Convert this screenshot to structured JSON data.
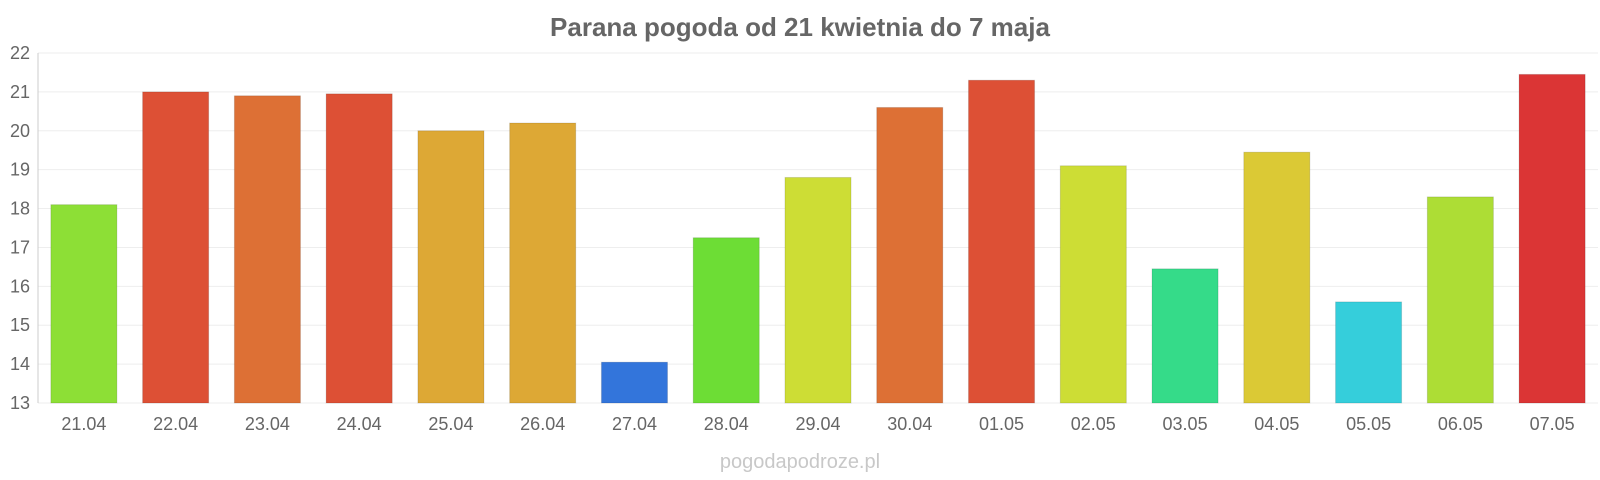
{
  "watermark": "pogodapodroze.pl",
  "chart_data": {
    "type": "bar",
    "title": "Parana pogoda od 21 kwietnia do 7 maja",
    "xlabel": "",
    "ylabel": "",
    "categories": [
      "21.04",
      "22.04",
      "23.04",
      "24.04",
      "25.04",
      "26.04",
      "27.04",
      "28.04",
      "29.04",
      "30.04",
      "01.05",
      "02.05",
      "03.05",
      "04.05",
      "05.05",
      "06.05",
      "07.05"
    ],
    "values": [
      18.1,
      21.0,
      20.9,
      20.95,
      20.0,
      20.2,
      14.05,
      17.25,
      18.8,
      20.6,
      21.3,
      19.1,
      16.45,
      19.45,
      15.6,
      18.3,
      21.45
    ],
    "colors": [
      "#8ddf36",
      "#dd5035",
      "#dd7035",
      "#dd5035",
      "#dda835",
      "#dda835",
      "#3375db",
      "#6ddd35",
      "#cddd35",
      "#dd7035",
      "#dd5035",
      "#cddd35",
      "#35db89",
      "#dbc935",
      "#35cedb",
      "#addd35",
      "#db3535"
    ],
    "ylim": [
      13,
      22
    ],
    "yticks": [
      13,
      14,
      15,
      16,
      17,
      18,
      19,
      20,
      21,
      22
    ],
    "grid": true,
    "legend": "none"
  }
}
